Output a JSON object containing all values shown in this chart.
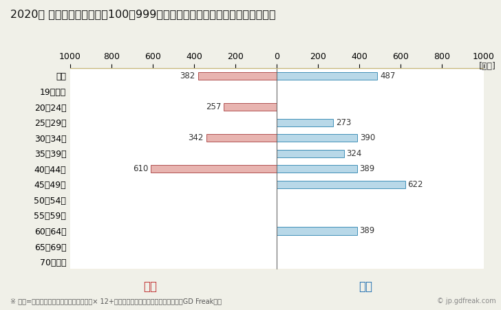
{
  "title": "2020年 民間企業（従業者数100～999人）フルタイム労働者の男女別平均年収",
  "unit_label": "[万円]",
  "categories": [
    "全体",
    "19歳以下",
    "20～24歳",
    "25～29歳",
    "30～34歳",
    "35～39歳",
    "40～44歳",
    "45～49歳",
    "50～54歳",
    "55～59歳",
    "60～64歳",
    "65～69歳",
    "70歳以上"
  ],
  "female_values": [
    382,
    0,
    257,
    0,
    342,
    0,
    610,
    0,
    0,
    0,
    0,
    0,
    0
  ],
  "male_values": [
    487,
    0,
    0,
    273,
    390,
    324,
    389,
    622,
    0,
    0,
    389,
    0,
    0
  ],
  "female_color": "#e8b4b0",
  "female_edge_color": "#b05050",
  "male_color": "#b8d8e8",
  "male_edge_color": "#4090b8",
  "female_label": "女性",
  "male_label": "男性",
  "female_label_color": "#c03030",
  "male_label_color": "#2070b0",
  "xlim": [
    -1000,
    1000
  ],
  "xticks": [
    -1000,
    -800,
    -600,
    -400,
    -200,
    0,
    200,
    400,
    600,
    800,
    1000
  ],
  "xtick_labels": [
    "1000",
    "800",
    "600",
    "400",
    "200",
    "0",
    "200",
    "400",
    "600",
    "800",
    "1000"
  ],
  "background_color": "#f0f0e8",
  "plot_bg_color": "#ffffff",
  "bar_height": 0.5,
  "footnote": "※ 年収=「きまって支給する現金給与額」× 12+「年間賞与その他特別給与額」としてGD Freak推計",
  "watermark": "© jp.gdfreak.com",
  "title_fontsize": 11.5,
  "axis_fontsize": 9,
  "bar_label_fontsize": 8.5,
  "legend_fontsize": 12,
  "footnote_fontsize": 7
}
